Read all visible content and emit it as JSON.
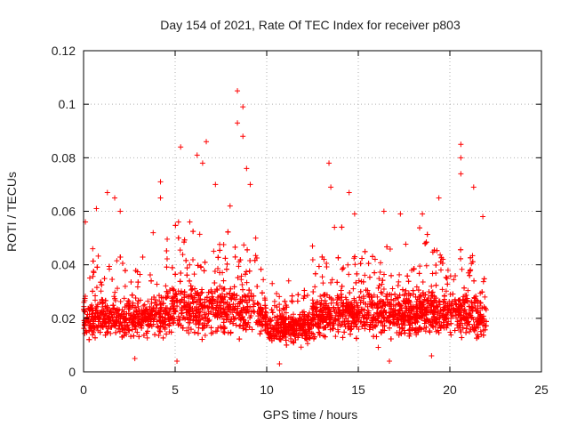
{
  "chart_data": {
    "type": "scatter",
    "title": "Day 154 of 2021, Rate Of TEC Index for receiver p803",
    "xlabel": "GPS time / hours",
    "ylabel": "ROTI / TECUs",
    "xlim": [
      0,
      25
    ],
    "ylim": [
      0,
      0.12
    ],
    "x_ticks": [
      "0",
      "5",
      "10",
      "15",
      "20",
      "25"
    ],
    "y_ticks": [
      "0",
      "0.02",
      "0.04",
      "0.06",
      "0.08",
      "0.1",
      "0.12"
    ],
    "grid": true,
    "marker": "plus",
    "color": "#ff0000",
    "data_extent_hours": [
      0,
      22
    ],
    "typical_band": [
      0.008,
      0.03
    ],
    "series": [
      {
        "values_note": "dense plus-marker scatter; representative peak points listed",
        "points": [
          [
            0.1,
            0.056
          ],
          [
            0.5,
            0.046
          ],
          [
            0.7,
            0.061
          ],
          [
            1.3,
            0.067
          ],
          [
            1.7,
            0.065
          ],
          [
            2.0,
            0.06
          ],
          [
            3.8,
            0.052
          ],
          [
            4.2,
            0.071
          ],
          [
            4.2,
            0.065
          ],
          [
            5.3,
            0.084
          ],
          [
            5.8,
            0.056
          ],
          [
            6.2,
            0.081
          ],
          [
            6.7,
            0.086
          ],
          [
            6.5,
            0.078
          ],
          [
            7.2,
            0.07
          ],
          [
            8.0,
            0.062
          ],
          [
            8.4,
            0.105
          ],
          [
            8.4,
            0.093
          ],
          [
            8.7,
            0.099
          ],
          [
            8.7,
            0.088
          ],
          [
            8.9,
            0.076
          ],
          [
            9.1,
            0.07
          ],
          [
            9.4,
            0.05
          ],
          [
            10.3,
            0.033
          ],
          [
            11.2,
            0.034
          ],
          [
            12.5,
            0.047
          ],
          [
            13.4,
            0.078
          ],
          [
            13.5,
            0.069
          ],
          [
            13.7,
            0.054
          ],
          [
            14.5,
            0.067
          ],
          [
            14.8,
            0.059
          ],
          [
            16.4,
            0.06
          ],
          [
            17.3,
            0.059
          ],
          [
            18.5,
            0.059
          ],
          [
            19.4,
            0.065
          ],
          [
            20.6,
            0.085
          ],
          [
            20.6,
            0.08
          ],
          [
            20.6,
            0.074
          ],
          [
            21.3,
            0.069
          ],
          [
            21.8,
            0.058
          ],
          [
            2.8,
            0.005
          ],
          [
            5.1,
            0.004
          ],
          [
            10.7,
            0.003
          ],
          [
            16.7,
            0.004
          ],
          [
            19.0,
            0.006
          ]
        ]
      }
    ]
  }
}
